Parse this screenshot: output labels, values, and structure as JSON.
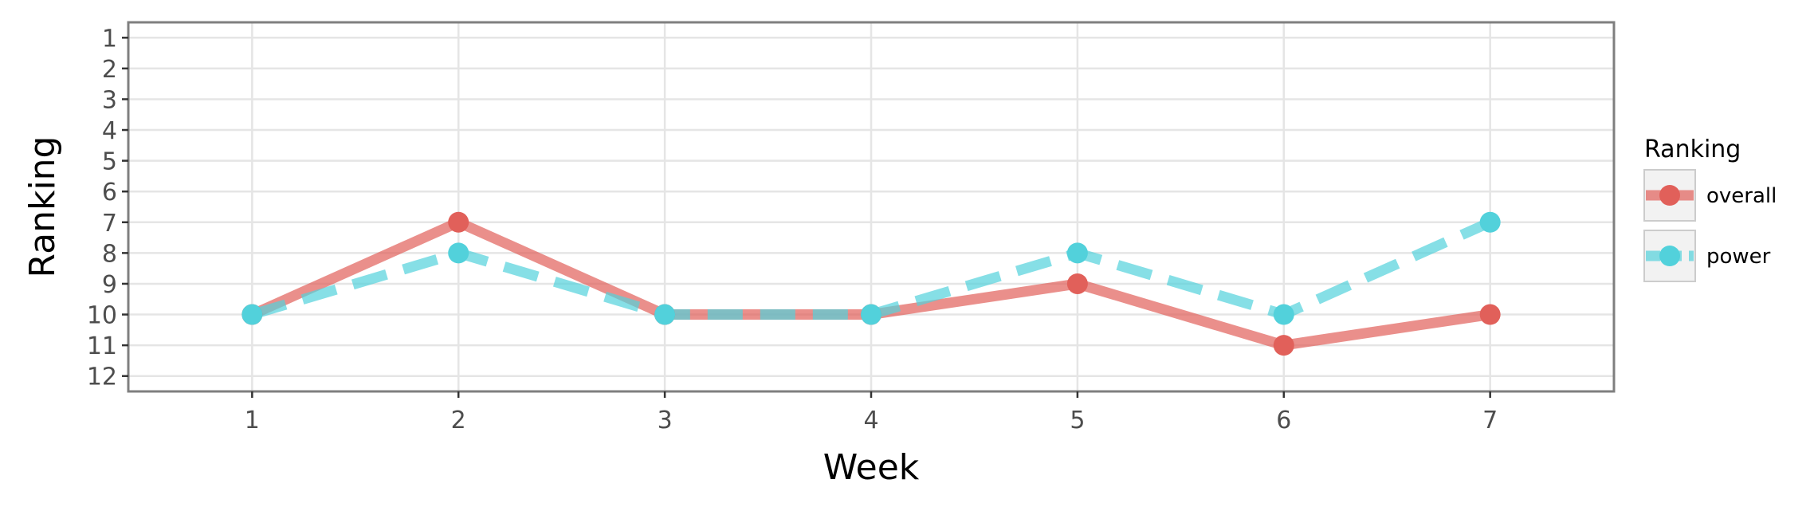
{
  "chart_data": {
    "type": "line",
    "xlabel": "Week",
    "ylabel": "Ranking",
    "x": [
      1,
      2,
      3,
      4,
      5,
      6,
      7
    ],
    "xlim": [
      0.4,
      7.6
    ],
    "ylim": [
      12.5,
      0.5
    ],
    "y_reversed": true,
    "y_ticks": [
      1,
      2,
      3,
      4,
      5,
      6,
      7,
      8,
      9,
      10,
      11,
      12
    ],
    "grid": true,
    "legend": {
      "title": "Ranking",
      "position": "right"
    },
    "series": [
      {
        "name": "overall",
        "values": [
          10,
          7,
          10,
          10,
          9,
          11,
          10
        ],
        "color": "#E1605A",
        "line_style": "solid"
      },
      {
        "name": "power",
        "values": [
          10,
          8,
          10,
          10,
          8,
          10,
          7
        ],
        "color": "#52D1DB",
        "line_style": "dashed"
      }
    ]
  }
}
